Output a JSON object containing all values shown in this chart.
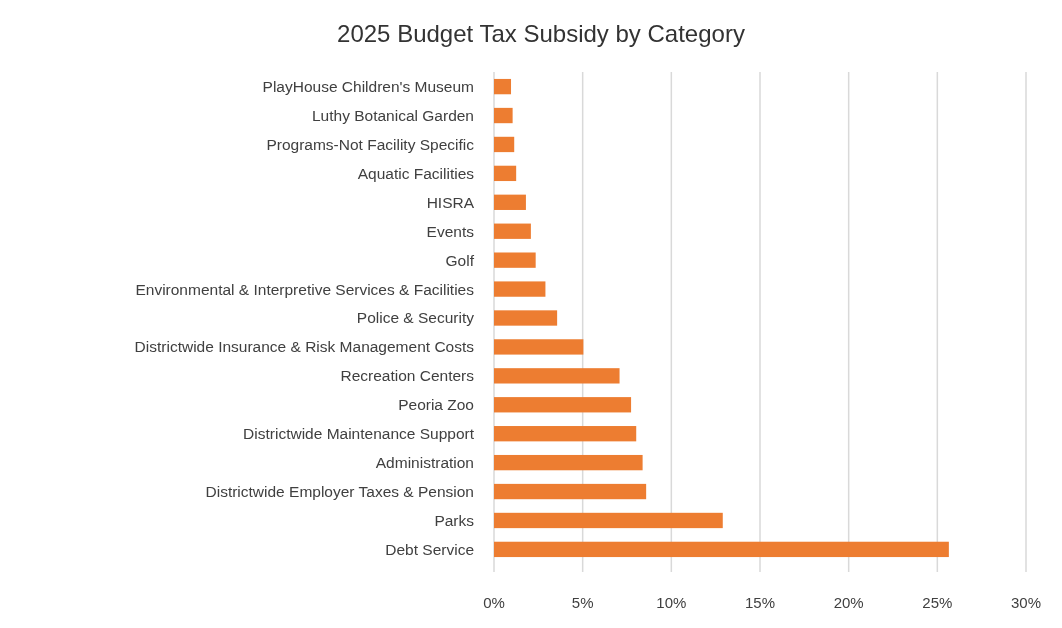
{
  "chart_data": {
    "type": "bar",
    "orientation": "horizontal",
    "title": "2025 Budget Tax Subsidy by Category",
    "categories": [
      "PlayHouse Children's Museum",
      "Luthy Botanical Garden",
      "Programs-Not Facility Specific",
      "Aquatic Facilities",
      "HISRA",
      "Events",
      "Golf",
      "Environmental & Interpretive Services & Facilities",
      "Police & Security",
      "Districtwide Insurance & Risk Management Costs",
      "Recreation Centers",
      "Peoria Zoo",
      "Districtwide Maintenance Support",
      "Administration",
      "Districtwide Employer Taxes & Pension",
      "Parks",
      "Debt Service"
    ],
    "values": [
      0.96,
      1.05,
      1.14,
      1.25,
      1.8,
      2.08,
      2.35,
      2.9,
      3.56,
      5.04,
      7.08,
      7.73,
      8.02,
      8.38,
      8.58,
      12.9,
      25.65
    ],
    "color": "#ed7d31",
    "xlim": [
      0,
      30
    ],
    "xticks": [
      {
        "value": 0,
        "label": "0%"
      },
      {
        "value": 5,
        "label": "5%"
      },
      {
        "value": 10,
        "label": "10%"
      },
      {
        "value": 15,
        "label": "15%"
      },
      {
        "value": 20,
        "label": "20%"
      },
      {
        "value": 25,
        "label": "25%"
      },
      {
        "value": 30,
        "label": "30%"
      }
    ],
    "grid": "x"
  }
}
